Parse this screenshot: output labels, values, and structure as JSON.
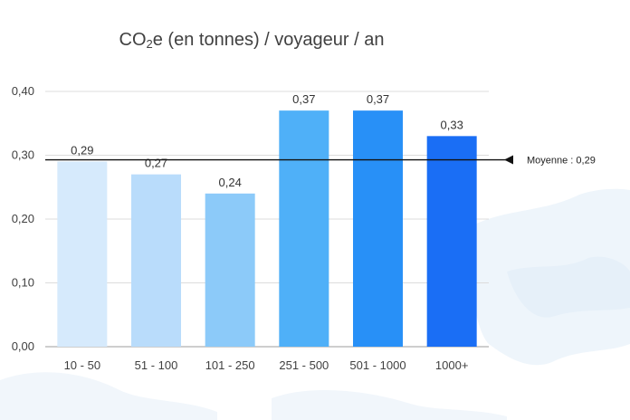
{
  "chart_data": {
    "type": "bar",
    "title_prefix": "CO",
    "title_subscript": "2",
    "title_suffix": "e (en tonnes)  / voyageur / an",
    "categories": [
      "10 - 50",
      "51 - 100",
      "101 - 250",
      "251 - 500",
      "501 - 1000",
      "1000+"
    ],
    "values": [
      0.29,
      0.27,
      0.24,
      0.37,
      0.37,
      0.33
    ],
    "value_labels": [
      "0,29",
      "0,27",
      "0,24",
      "0,37",
      "0,37",
      "0,33"
    ],
    "bar_colors": [
      "#d6eafc",
      "#b9dcfb",
      "#8ccaf9",
      "#4fb0f8",
      "#2890f7",
      "#1a6ef5"
    ],
    "ylim": [
      0,
      0.4
    ],
    "yticks": [
      0.0,
      0.1,
      0.2,
      0.3,
      0.4
    ],
    "ytick_labels": [
      "0,00",
      "0,10",
      "0,20",
      "0,30",
      "0,40"
    ],
    "average": 0.29,
    "average_label": "Moyenne : 0,29",
    "grid": true,
    "xlabel": "",
    "ylabel": ""
  }
}
